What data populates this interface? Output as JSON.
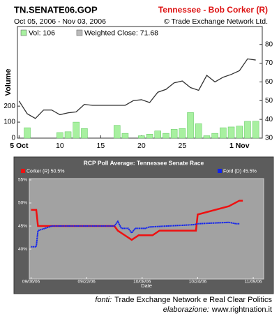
{
  "chart_data": [
    {
      "type": "combo",
      "title": "TN.SENATE06.GOP",
      "subtitle": "Oct 05, 2006 - Nov 03, 2006",
      "market": "Tennessee - Bob Corker (R)",
      "copyright": "© Trade Exchange Network Ltd.",
      "ylabel": "Volume",
      "xlim": [
        -0.2,
        29.8
      ],
      "xticks": [
        {
          "value": 0,
          "label": "5 Oct"
        },
        {
          "value": 5,
          "label": "10"
        },
        {
          "value": 10,
          "label": "15"
        },
        {
          "value": 15,
          "label": "20"
        },
        {
          "value": 20,
          "label": "25"
        },
        {
          "value": 27,
          "label": "1 Nov"
        }
      ],
      "ylim": [
        0,
        615
      ],
      "yticks": [
        0,
        100,
        200
      ],
      "y2lim": [
        30,
        82.5
      ],
      "y2ticks": [
        30,
        40,
        50,
        60,
        70,
        80
      ],
      "series": [
        {
          "name": "Vol: 106",
          "type": "bar",
          "color": "#a8f0a0",
          "x": [
            1,
            5,
            6,
            7,
            8,
            12,
            13,
            15,
            16,
            17,
            18,
            19,
            20,
            21,
            22,
            23,
            24,
            25,
            26,
            27,
            28,
            29
          ],
          "values": [
            65,
            35,
            40,
            100,
            60,
            80,
            30,
            15,
            25,
            45,
            30,
            55,
            60,
            160,
            90,
            15,
            30,
            65,
            70,
            75,
            105,
            106
          ]
        },
        {
          "name": "Weighted Close: 71.68",
          "type": "line",
          "axis": "y2",
          "color": "#333333",
          "x": [
            0,
            1,
            2,
            3,
            4,
            5,
            6,
            7,
            8,
            9,
            10,
            11,
            12,
            13,
            14,
            15,
            16,
            17,
            18,
            19,
            20,
            21,
            22,
            23,
            24,
            25,
            26,
            27,
            28,
            29
          ],
          "values": [
            49.8,
            43,
            40.5,
            45,
            45,
            42.5,
            43.5,
            44,
            48,
            47.5,
            47.5,
            47.5,
            47.5,
            47.5,
            50,
            50.5,
            49,
            54.5,
            56,
            59.5,
            60.5,
            57,
            55.5,
            63.5,
            60,
            62.5,
            64,
            66,
            72.3,
            71.68
          ]
        }
      ]
    },
    {
      "type": "line",
      "title": "RCP Poll Average: Tennessee Senate Race",
      "xlabel": "Date",
      "xlim": [
        -0.5,
        67
      ],
      "xticks": [
        {
          "value": 0,
          "label": "09/06/06"
        },
        {
          "value": 16,
          "label": "09/22/06"
        },
        {
          "value": 32,
          "label": "10/08/06"
        },
        {
          "value": 48,
          "label": "10/24/06"
        },
        {
          "value": 64,
          "label": "11/09/06"
        }
      ],
      "ylim": [
        33.5,
        55.3
      ],
      "yticks": [
        {
          "value": 40,
          "label": "40%"
        },
        {
          "value": 45,
          "label": "45%"
        },
        {
          "value": 50,
          "label": "50%"
        },
        {
          "value": 55,
          "label": "55%"
        }
      ],
      "series": [
        {
          "name": "Corker (R) 50.5%",
          "color": "#ee1111",
          "x": [
            0,
            1.5,
            2,
            24,
            25,
            27,
            29,
            31,
            35,
            37,
            47.5,
            48,
            57,
            60,
            61
          ],
          "values": [
            48.5,
            48.5,
            45,
            45,
            44,
            43,
            42,
            43,
            43,
            44,
            44,
            47.5,
            49.3,
            50.5,
            50.5
          ]
        },
        {
          "name": "Ford (D) 45.5%",
          "color": "#1122ee",
          "x": [
            0,
            1.5,
            2,
            6,
            24,
            25,
            26,
            28,
            29,
            30,
            33,
            34,
            47,
            48,
            57,
            59,
            60
          ],
          "values": [
            40.5,
            40.5,
            44,
            45,
            45,
            46,
            44.5,
            44.5,
            43.5,
            44.5,
            44.5,
            44.8,
            45.3,
            45.5,
            45.8,
            45.5,
            45.5
          ]
        }
      ]
    }
  ],
  "footer": [
    {
      "label": "fonti:",
      "text": "Trade Exchange Network e Real Clear Politics"
    },
    {
      "label": "elaborazione:",
      "text": "www.rightnation.it"
    }
  ]
}
